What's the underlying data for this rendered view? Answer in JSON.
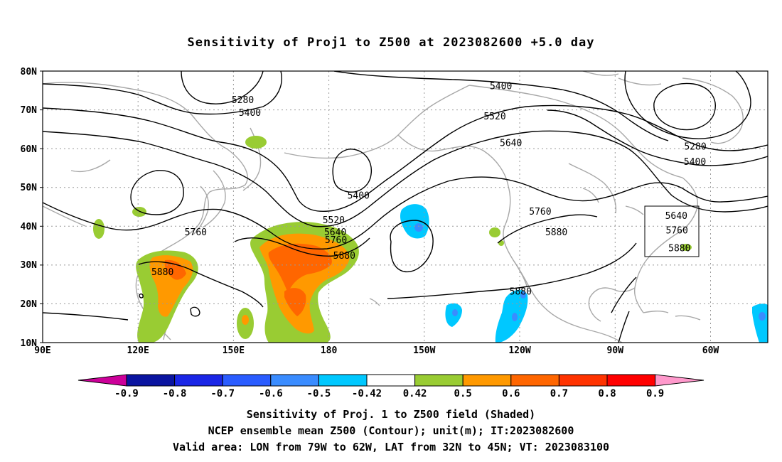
{
  "title": "Sensitivity of Proj1 to Z500 at 2023082600 +5.0 day",
  "map": {
    "lat_labels": [
      "80N",
      "70N",
      "60N",
      "50N",
      "40N",
      "30N",
      "20N",
      "10N"
    ],
    "lon_labels": [
      "90E",
      "120E",
      "150E",
      "180",
      "150W",
      "120W",
      "90W",
      "60W"
    ],
    "contour_labels": [
      {
        "text": "5400",
        "lon": -127.8,
        "lat": 76.2
      },
      {
        "text": "5280",
        "lon": 152.1,
        "lat": 72.7
      },
      {
        "text": "5400",
        "lon": 154.3,
        "lat": 69.4
      },
      {
        "text": "5520",
        "lon": -129.7,
        "lat": 68.5
      },
      {
        "text": "5640",
        "lon": -124.7,
        "lat": 61.6
      },
      {
        "text": "5280",
        "lon": -67.5,
        "lat": 60.7
      },
      {
        "text": "5400",
        "lon": -67.6,
        "lat": 56.7
      },
      {
        "text": "5400",
        "lon": -172.0,
        "lat": 48.0
      },
      {
        "text": "5520",
        "lon": -179.7,
        "lat": 41.7
      },
      {
        "text": "5760",
        "lon": -115.6,
        "lat": 43.9
      },
      {
        "text": "5640",
        "lon": -73.4,
        "lat": 42.8
      },
      {
        "text": "5640",
        "lon": -179.2,
        "lat": 38.6
      },
      {
        "text": "5760",
        "lon": 137.5,
        "lat": 38.6
      },
      {
        "text": "5880",
        "lon": -110.6,
        "lat": 38.6
      },
      {
        "text": "5760",
        "lon": -73.2,
        "lat": 39.0
      },
      {
        "text": "5760",
        "lon": -179.0,
        "lat": 36.6
      },
      {
        "text": "5880",
        "lon": -72.4,
        "lat": 34.5
      },
      {
        "text": "5880",
        "lon": -176.4,
        "lat": 32.5
      },
      {
        "text": "5880",
        "lon": 127.2,
        "lat": 28.3
      },
      {
        "text": "5880",
        "lon": -121.7,
        "lat": 23.3
      }
    ],
    "valid_area": {
      "lon_min": -79,
      "lon_max": -62,
      "lat_min": 32,
      "lat_max": 45
    }
  },
  "colorbar": {
    "labels": [
      "-0.9",
      "-0.8",
      "-0.7",
      "-0.6",
      "-0.5",
      "-0.42",
      "0.42",
      "0.5",
      "0.6",
      "0.7",
      "0.8",
      "0.9"
    ],
    "colors": [
      "#cc0099",
      "#0a14a0",
      "#1a26e6",
      "#2a5cff",
      "#3a8cff",
      "#00c8ff",
      "#ffffff",
      "#99cc33",
      "#ff9900",
      "#ff6600",
      "#ff3300",
      "#ff0000",
      "#ff99cc"
    ],
    "colors_meaning": "left triangle, 11 boxes, right triangle"
  },
  "captions": {
    "line1": "Sensitivity of Proj. 1 to Z500 field (Shaded)",
    "line2": "NCEP ensemble mean Z500 (Contour); unit(m); IT:2023082600",
    "line3": "Valid area: LON from 79W to 62W, LAT from 32N to 45N; VT: 2023083100"
  }
}
